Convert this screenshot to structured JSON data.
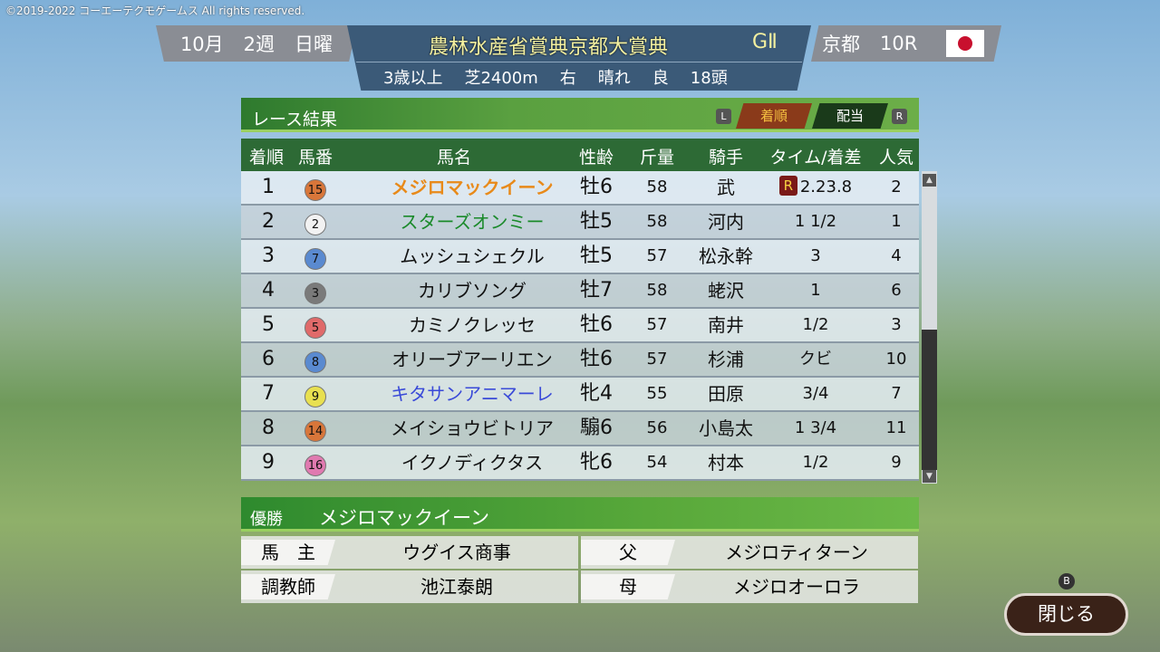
{
  "copyright": "©2019-2022 コーエーテクモゲームス All rights reserved.",
  "header": {
    "month": "10月",
    "week": "2週",
    "day": "日曜",
    "race_name": "農林水産省賞典京都大賞典",
    "grade": "GⅡ",
    "course": "京都",
    "race_no": "10R",
    "flag_icon": "japan-flag-icon",
    "conditions": [
      "3歳以上",
      "芝2400m",
      "右",
      "晴れ",
      "良",
      "18頭"
    ]
  },
  "panel": {
    "title": "レース結果",
    "key_left": "L",
    "key_right": "R",
    "tabs": [
      {
        "label": "着順",
        "active": true
      },
      {
        "label": "配当",
        "active": false
      }
    ]
  },
  "table": {
    "columns": [
      "着順",
      "馬番",
      "馬名",
      "性齢",
      "斤量",
      "騎手",
      "タイム/着差",
      "人気"
    ],
    "rows": [
      {
        "pos": "1",
        "num": "15",
        "num_color": "#d8763a",
        "name": "メジロマックイーン",
        "name_color": "#e88a1a",
        "sexage": "牡6",
        "weight": "58",
        "jockey": "武",
        "time": "2.23.8",
        "record": "R",
        "pop": "2"
      },
      {
        "pos": "2",
        "num": "2",
        "num_color": "#f2f2f2",
        "name": "スターズオンミー",
        "name_color": "#1a8a2a",
        "sexage": "牡5",
        "weight": "58",
        "jockey": "河内",
        "time": "1 1/2",
        "pop": "1"
      },
      {
        "pos": "3",
        "num": "7",
        "num_color": "#5a8ad0",
        "name": "ムッシュシェクル",
        "name_color": "#111111",
        "sexage": "牡5",
        "weight": "57",
        "jockey": "松永幹",
        "time": "3",
        "pop": "4"
      },
      {
        "pos": "4",
        "num": "3",
        "num_color": "#7a7a7a",
        "name": "カリブソング",
        "name_color": "#111111",
        "sexage": "牡7",
        "weight": "58",
        "jockey": "蛯沢",
        "time": "1",
        "pop": "6"
      },
      {
        "pos": "5",
        "num": "5",
        "num_color": "#e06a6a",
        "name": "カミノクレッセ",
        "name_color": "#111111",
        "sexage": "牡6",
        "weight": "57",
        "jockey": "南井",
        "time": "1/2",
        "pop": "3"
      },
      {
        "pos": "6",
        "num": "8",
        "num_color": "#5a8ad0",
        "name": "オリーブアーリエン",
        "name_color": "#111111",
        "sexage": "牡6",
        "weight": "57",
        "jockey": "杉浦",
        "time": "クビ",
        "pop": "10"
      },
      {
        "pos": "7",
        "num": "9",
        "num_color": "#e8e050",
        "name": "キタサンアニマーレ",
        "name_color": "#3a4ad8",
        "sexage": "牝4",
        "weight": "55",
        "jockey": "田原",
        "time": "3/4",
        "pop": "7"
      },
      {
        "pos": "8",
        "num": "14",
        "num_color": "#d8763a",
        "name": "メイショウビトリア",
        "name_color": "#111111",
        "sexage": "騸6",
        "weight": "56",
        "jockey": "小島太",
        "time": "1 3/4",
        "pop": "11"
      },
      {
        "pos": "9",
        "num": "16",
        "num_color": "#e07ab0",
        "name": "イクノディクタス",
        "name_color": "#111111",
        "sexage": "牝6",
        "weight": "54",
        "jockey": "村本",
        "time": "1/2",
        "pop": "9"
      }
    ]
  },
  "winner": {
    "label": "優勝",
    "name": "メジロマックイーン",
    "owner_label": "馬　主",
    "owner": "ウグイス商事",
    "trainer_label": "調教師",
    "trainer": "池江泰朗",
    "sire_label": "父",
    "sire": "メジロティターン",
    "dam_label": "母",
    "dam": "メジロオーロラ"
  },
  "close": {
    "label": "閉じる",
    "key": "B"
  }
}
